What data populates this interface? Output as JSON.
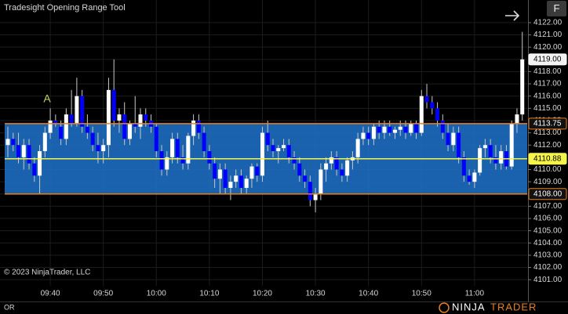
{
  "chart_data": {
    "type": "candlestick",
    "title": "Tradesight Opening Range Tool",
    "copyright": "© 2023 NinjaTrader, LLC",
    "footer_label": "OR",
    "button": "F",
    "brand": [
      "NINJA",
      "TRADER"
    ],
    "annotation": {
      "text": "A",
      "value": 4115.75
    },
    "up_color": "#ffffff",
    "down_color": "#0000ff",
    "grid": true,
    "categories": [
      null,
      null,
      null,
      null,
      null,
      null,
      null,
      null,
      "09:40",
      null,
      null,
      null,
      null,
      null,
      null,
      null,
      null,
      null,
      "09:50",
      null,
      null,
      null,
      null,
      null,
      null,
      null,
      null,
      null,
      "10:00",
      null,
      null,
      null,
      null,
      null,
      null,
      null,
      null,
      null,
      "10:10",
      null,
      null,
      null,
      null,
      null,
      null,
      null,
      null,
      null,
      "10:20",
      null,
      null,
      null,
      null,
      null,
      null,
      null,
      null,
      null,
      "10:30",
      null,
      null,
      null,
      null,
      null,
      null,
      null,
      null,
      null,
      "10:40",
      null,
      null,
      null,
      null,
      null,
      null,
      null,
      null,
      null,
      "10:50",
      null,
      null,
      null,
      null,
      null,
      null,
      null,
      null,
      null,
      "11:00",
      null,
      null,
      null,
      null,
      null,
      null,
      null,
      null,
      null
    ],
    "open": [
      4112,
      4112.5,
      4112,
      4111,
      4112,
      4110.5,
      4109.5,
      4111.5,
      4113,
      4114,
      4113.5,
      4112.5,
      4114.5,
      4113.75,
      4116,
      4113.5,
      4113,
      4112,
      4111.5,
      4112,
      4116.5,
      4114,
      4114.5,
      4112.5,
      4113.75,
      4113.5,
      4114.5,
      4114,
      4113.5,
      4111.5,
      4110,
      4111,
      4112.5,
      4111,
      4110.5,
      4112.75,
      4114,
      4113,
      4111.5,
      4110.5,
      4109.25,
      4110,
      4108.5,
      4109,
      4109.5,
      4108.5,
      4109.25,
      4110.25,
      4109.5,
      4113,
      4112,
      4111.5,
      4111.75,
      4112,
      4111,
      4110.5,
      4109.5,
      4109,
      4107.5,
      4108,
      4110,
      4110.5,
      4111,
      4110,
      4109.5,
      4110.75,
      4111,
      4112.5,
      4113,
      4112.5,
      4113.5,
      4113,
      4113.5,
      4113,
      4113.25,
      4113.5,
      4113,
      4113.75,
      4113,
      4116,
      4115.5,
      4115,
      4114,
      4113,
      4112,
      4113,
      4111,
      4109.5,
      4109,
      4109.75,
      4111.75,
      4112,
      4111,
      4110.5,
      4111.5,
      4110.25,
      4113.75,
      4114.5
    ],
    "high": [
      4113.5,
      4113,
      4113,
      4112.5,
      4112.5,
      4111,
      4112,
      4113.5,
      4115,
      4114.5,
      4114,
      4115,
      4116.5,
      4117.5,
      4116.5,
      4114.5,
      4113.5,
      4113,
      4112.5,
      4117.5,
      4119,
      4115,
      4115.5,
      4114,
      4116,
      4115,
      4115,
      4114.5,
      4113.75,
      4112,
      4111.5,
      4113,
      4113,
      4112,
      4113,
      4114.5,
      4114.5,
      4113.5,
      4112,
      4111,
      4110.5,
      4110.5,
      4109.5,
      4110,
      4110,
      4109.5,
      4110.5,
      4110.5,
      4113.5,
      4114,
      4112.5,
      4112,
      4112.5,
      4112.5,
      4111.5,
      4111,
      4110,
      4109.5,
      4108.5,
      4110.5,
      4111,
      4111.5,
      4111.5,
      4110.5,
      4111,
      4111.5,
      4113,
      4113.5,
      4113.5,
      4113.75,
      4114,
      4114,
      4114,
      4113.5,
      4114,
      4114,
      4114,
      4114,
      4116.5,
      4117,
      4116,
      4115.5,
      4114.5,
      4113.75,
      4113.5,
      4113.5,
      4111.5,
      4110,
      4110,
      4112,
      4112.5,
      4112.5,
      4112,
      4112,
      4112,
      4114,
      4115,
      4121.25
    ],
    "low": [
      4111,
      4111.5,
      4110.5,
      4110,
      4110,
      4109,
      4108,
      4111,
      4112.5,
      4113.5,
      4112,
      4112,
      4113.5,
      4113.5,
      4113,
      4112.5,
      4111.5,
      4110.5,
      4110.5,
      4111,
      4113.5,
      4113,
      4112,
      4112,
      4113,
      4112.5,
      4113.5,
      4113,
      4111,
      4109.5,
      4109.5,
      4110.5,
      4110.5,
      4110,
      4110,
      4112,
      4112.5,
      4111,
      4110,
      4108.5,
      4108,
      4108,
      4107.5,
      4108.5,
      4108,
      4108,
      4108.5,
      4109,
      4109,
      4111.5,
      4111,
      4110.5,
      4111.5,
      4110.5,
      4110,
      4109,
      4108.5,
      4107,
      4106.5,
      4107.5,
      4109,
      4110,
      4109.5,
      4109,
      4109,
      4110,
      4110.5,
      4112,
      4112,
      4112,
      4112.5,
      4112.5,
      4112.75,
      4112.5,
      4112.75,
      4112.5,
      4112.75,
      4112.5,
      4112.75,
      4115,
      4114.5,
      4113.5,
      4112.5,
      4111.5,
      4111.5,
      4110.5,
      4109,
      4108.75,
      4108.5,
      4109.5,
      4111,
      4110.5,
      4110,
      4110,
      4110,
      4110,
      4113,
      4114
    ],
    "close": [
      4112.5,
      4112,
      4111,
      4112,
      4110.5,
      4109.5,
      4111.5,
      4113,
      4114,
      4113.75,
      4112.5,
      4114.5,
      4113.75,
      4116,
      4113.5,
      4113,
      4112,
      4111.5,
      4112,
      4116.5,
      4114,
      4114.5,
      4112.5,
      4113.75,
      4113.5,
      4114.5,
      4114,
      4113.5,
      4111.5,
      4110,
      4111,
      4112.5,
      4111,
      4110.5,
      4112.75,
      4114,
      4113,
      4111.5,
      4110.5,
      4109.25,
      4110,
      4108.5,
      4109,
      4109.5,
      4108.5,
      4109.25,
      4110.25,
      4109.5,
      4113,
      4112,
      4111.5,
      4111.75,
      4112,
      4111,
      4110.5,
      4109.5,
      4109,
      4107.5,
      4108,
      4110,
      4110.5,
      4111,
      4110,
      4109.5,
      4110.75,
      4111,
      4112.5,
      4113,
      4112.5,
      4113.5,
      4113,
      4113.5,
      4113,
      4113.25,
      4113.5,
      4113,
      4113.75,
      4113,
      4116,
      4115.5,
      4115,
      4114,
      4113,
      4112,
      4113,
      4111,
      4109.5,
      4109,
      4109.75,
      4111.75,
      4112,
      4111,
      4110.5,
      4111.5,
      4110.25,
      4113.75,
      4114.5,
      4119
    ],
    "ylim": [
      4100.5,
      4123.85
    ],
    "yticks": [
      {
        "value": 4101,
        "label": "4101.00"
      },
      {
        "value": 4102,
        "label": "4102.00"
      },
      {
        "value": 4103,
        "label": "4103.00"
      },
      {
        "value": 4104,
        "label": "4104.00"
      },
      {
        "value": 4105,
        "label": "4105.00"
      },
      {
        "value": 4106,
        "label": "4106.00"
      },
      {
        "value": 4107,
        "label": "4107.00"
      },
      {
        "value": 4108,
        "label": "4108.00"
      },
      {
        "value": 4109,
        "label": "4109.00"
      },
      {
        "value": 4110,
        "label": "4110.00"
      },
      {
        "value": 4111,
        "label": "4111.00"
      },
      {
        "value": 4112,
        "label": "4112.00"
      },
      {
        "value": 4113,
        "label": "4113.00"
      },
      {
        "value": 4114,
        "label": "4114.00"
      },
      {
        "value": 4115,
        "label": "4115.00"
      },
      {
        "value": 4116,
        "label": "4116.00"
      },
      {
        "value": 4117,
        "label": "4117.00"
      },
      {
        "value": 4118,
        "label": "4118.00"
      },
      {
        "value": 4119,
        "label": "4119.00"
      },
      {
        "value": 4120,
        "label": "4120.00"
      },
      {
        "value": 4121,
        "label": "4121.00"
      },
      {
        "value": 4122,
        "label": "4122.00"
      }
    ],
    "range_high": {
      "value": 4113.75,
      "label": "4113.75",
      "color": "#e8801e"
    },
    "range_low": {
      "value": 4108,
      "label": "4108.00",
      "color": "#e8801e"
    },
    "range_mid": {
      "value": 4110.88,
      "label": "4110.88",
      "color": "#f4f44a"
    },
    "range_fill": "#1f6fc6",
    "last_price": {
      "value": 4119,
      "label": "4119.00"
    }
  }
}
